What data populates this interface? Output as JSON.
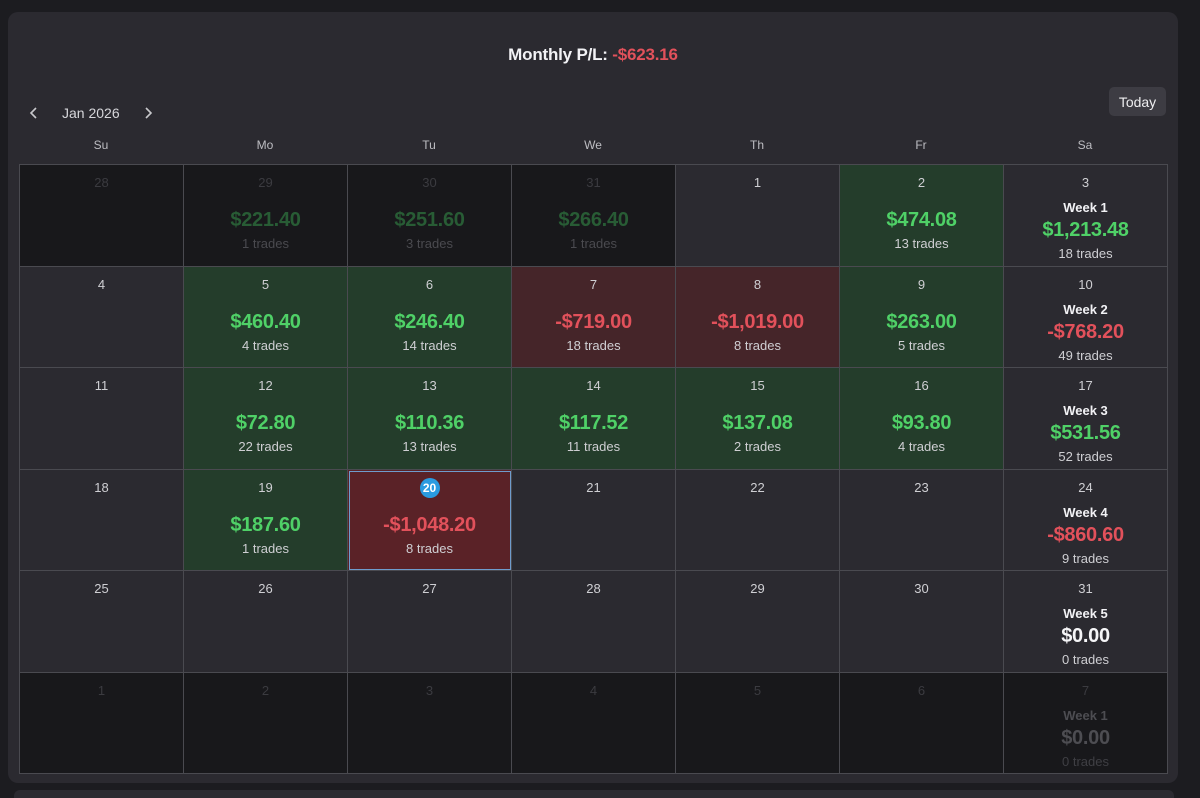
{
  "header": {
    "monthly_label": "Monthly P/L:",
    "monthly_value": "-$623.16"
  },
  "nav": {
    "prev_icon": "chevron-left-icon",
    "month_label": "Jan 2026",
    "next_icon": "chevron-right-icon",
    "today_label": "Today"
  },
  "colors": {
    "positive": "#4fd167",
    "negative": "#e2515b",
    "today": "#2a9be0"
  },
  "weekdays": [
    "Su",
    "Mo",
    "Tu",
    "We",
    "Th",
    "Fr",
    "Sa"
  ],
  "weeks": [
    {
      "days": [
        {
          "num": "28",
          "outside": true
        },
        {
          "num": "29",
          "outside": true,
          "amount": "$221.40",
          "sign": "pos",
          "trades": "1 trades"
        },
        {
          "num": "30",
          "outside": true,
          "amount": "$251.60",
          "sign": "pos",
          "trades": "3 trades"
        },
        {
          "num": "31",
          "outside": true,
          "amount": "$266.40",
          "sign": "pos",
          "trades": "1 trades"
        },
        {
          "num": "1"
        },
        {
          "num": "2",
          "amount": "$474.08",
          "sign": "pos",
          "trades": "13 trades"
        }
      ],
      "summary": {
        "num": "3",
        "label": "Week 1",
        "amount": "$1,213.48",
        "sign": "pos",
        "trades": "18 trades"
      }
    },
    {
      "days": [
        {
          "num": "4"
        },
        {
          "num": "5",
          "amount": "$460.40",
          "sign": "pos",
          "trades": "4 trades"
        },
        {
          "num": "6",
          "amount": "$246.40",
          "sign": "pos",
          "trades": "14 trades"
        },
        {
          "num": "7",
          "amount": "-$719.00",
          "sign": "neg",
          "trades": "18 trades"
        },
        {
          "num": "8",
          "amount": "-$1,019.00",
          "sign": "neg",
          "trades": "8 trades"
        },
        {
          "num": "9",
          "amount": "$263.00",
          "sign": "pos",
          "trades": "5 trades"
        }
      ],
      "summary": {
        "num": "10",
        "label": "Week 2",
        "amount": "-$768.20",
        "sign": "neg",
        "trades": "49 trades"
      }
    },
    {
      "days": [
        {
          "num": "11"
        },
        {
          "num": "12",
          "amount": "$72.80",
          "sign": "pos",
          "trades": "22 trades"
        },
        {
          "num": "13",
          "amount": "$110.36",
          "sign": "pos",
          "trades": "13 trades"
        },
        {
          "num": "14",
          "amount": "$117.52",
          "sign": "pos",
          "trades": "11 trades"
        },
        {
          "num": "15",
          "amount": "$137.08",
          "sign": "pos",
          "trades": "2 trades"
        },
        {
          "num": "16",
          "amount": "$93.80",
          "sign": "pos",
          "trades": "4 trades"
        }
      ],
      "summary": {
        "num": "17",
        "label": "Week 3",
        "amount": "$531.56",
        "sign": "pos",
        "trades": "52 trades"
      }
    },
    {
      "days": [
        {
          "num": "18"
        },
        {
          "num": "19",
          "amount": "$187.60",
          "sign": "pos",
          "trades": "1 trades"
        },
        {
          "num": "20",
          "today": true,
          "amount": "-$1,048.20",
          "sign": "neg",
          "trades": "8 trades"
        },
        {
          "num": "21"
        },
        {
          "num": "22"
        },
        {
          "num": "23"
        }
      ],
      "summary": {
        "num": "24",
        "label": "Week 4",
        "amount": "-$860.60",
        "sign": "neg",
        "trades": "9 trades"
      }
    },
    {
      "days": [
        {
          "num": "25"
        },
        {
          "num": "26"
        },
        {
          "num": "27"
        },
        {
          "num": "28"
        },
        {
          "num": "29"
        },
        {
          "num": "30"
        }
      ],
      "summary": {
        "num": "31",
        "label": "Week 5",
        "amount": "$0.00",
        "sign": "zero",
        "trades": "0 trades"
      }
    },
    {
      "days": [
        {
          "num": "1",
          "outside": true
        },
        {
          "num": "2",
          "outside": true
        },
        {
          "num": "3",
          "outside": true
        },
        {
          "num": "4",
          "outside": true
        },
        {
          "num": "5",
          "outside": true
        },
        {
          "num": "6",
          "outside": true
        }
      ],
      "summary": {
        "num": "7",
        "outside": true,
        "label": "Week 1",
        "amount": "$0.00",
        "sign": "zero",
        "trades": "0 trades"
      }
    }
  ]
}
